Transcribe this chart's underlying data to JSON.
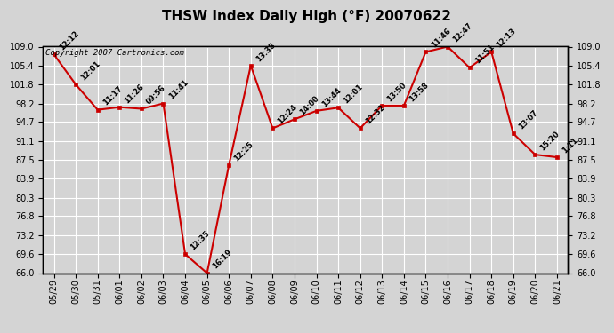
{
  "title": "THSW Index Daily High (°F) 20070622",
  "copyright": "Copyright 2007 Cartronics.com",
  "dates": [
    "05/29",
    "05/30",
    "05/31",
    "06/01",
    "06/02",
    "06/03",
    "06/04",
    "06/05",
    "06/06",
    "06/07",
    "06/08",
    "06/09",
    "06/10",
    "06/11",
    "06/12",
    "06/13",
    "06/14",
    "06/15",
    "06/16",
    "06/17",
    "06/18",
    "06/19",
    "06/20",
    "06/21"
  ],
  "values": [
    107.5,
    101.8,
    97.0,
    97.5,
    97.2,
    98.2,
    69.6,
    66.0,
    86.5,
    105.4,
    93.5,
    95.2,
    96.8,
    97.4,
    93.5,
    97.8,
    97.8,
    108.0,
    109.0,
    105.0,
    108.0,
    92.5,
    88.5,
    88.0
  ],
  "time_labels": [
    "12:12",
    "12:01",
    "11:17",
    "11:26",
    "09:56",
    "11:41",
    "12:35",
    "16:19",
    "12:25",
    "13:38",
    "12:24",
    "14:00",
    "13:44",
    "12:01",
    "12:32",
    "13:50",
    "13:58",
    "11:46",
    "12:47",
    "11:51",
    "12:13",
    "13:07",
    "15:20",
    "1:11"
  ],
  "ylim": [
    66.0,
    109.0
  ],
  "yticks": [
    66.0,
    69.6,
    73.2,
    76.8,
    80.3,
    83.9,
    87.5,
    91.1,
    94.7,
    98.2,
    101.8,
    105.4,
    109.0
  ],
  "line_color": "#cc0000",
  "marker_color": "#cc0000",
  "bg_color": "#d4d4d4",
  "grid_color": "#ffffff",
  "title_fontsize": 11,
  "tick_fontsize": 7,
  "annot_fontsize": 6,
  "copyright_fontsize": 6.5
}
